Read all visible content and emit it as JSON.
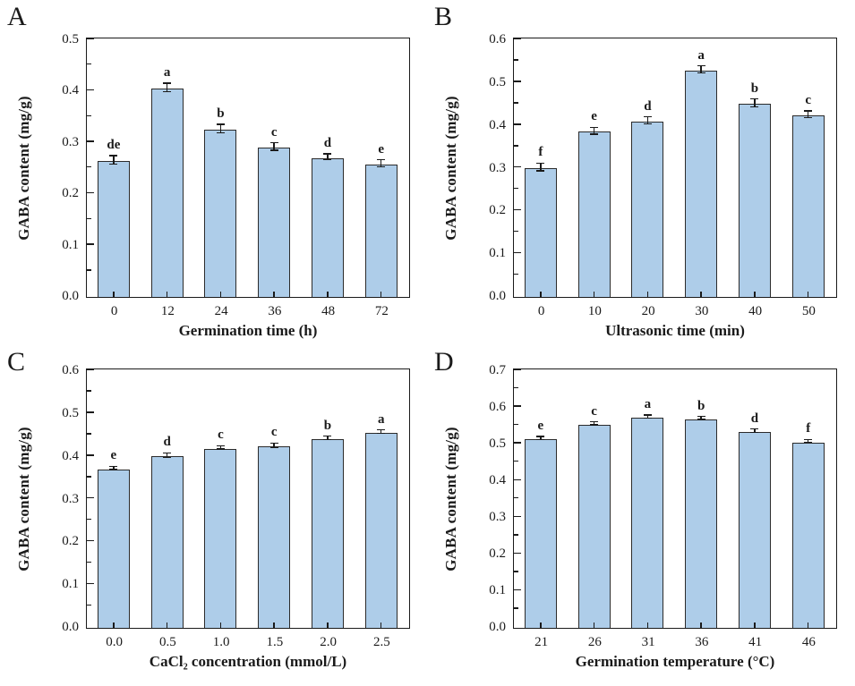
{
  "figure": {
    "background": "#ffffff",
    "bar_fill": "#aecde9",
    "bar_border": "#2b2b2b",
    "axis_color": "#1a1a1a",
    "text_color": "#1a1a1a"
  },
  "chart_data": [
    {
      "type": "bar",
      "panel": "A",
      "xlabel": "Germination time (h)",
      "ylabel": "GABA content (mg/g)",
      "ylim": [
        0,
        0.5
      ],
      "ytick_step": 0.1,
      "ytick_minor_step": 0.05,
      "grid": false,
      "categories": [
        "0",
        "12",
        "24",
        "36",
        "48",
        "72"
      ],
      "values": [
        0.264,
        0.405,
        0.325,
        0.29,
        0.27,
        0.257
      ],
      "errors": [
        0.008,
        0.008,
        0.008,
        0.007,
        0.006,
        0.007
      ],
      "sig_letters": [
        "de",
        "a",
        "b",
        "c",
        "d",
        "e"
      ]
    },
    {
      "type": "bar",
      "panel": "B",
      "xlabel": "Ultrasonic time (min)",
      "ylabel": "GABA content (mg/g)",
      "ylim": [
        0,
        0.6
      ],
      "ytick_step": 0.1,
      "ytick_minor_step": 0.05,
      "grid": false,
      "categories": [
        "0",
        "10",
        "20",
        "30",
        "40",
        "50"
      ],
      "values": [
        0.3,
        0.385,
        0.409,
        0.528,
        0.45,
        0.423
      ],
      "errors": [
        0.009,
        0.008,
        0.008,
        0.008,
        0.009,
        0.008
      ],
      "sig_letters": [
        "f",
        "e",
        "d",
        "a",
        "b",
        "c"
      ]
    },
    {
      "type": "bar",
      "panel": "C",
      "xlabel": "CaCl₂ concentration (mmol/L)",
      "ylabel": "GABA content (mg/g)",
      "ylim": [
        0,
        0.6
      ],
      "ytick_step": 0.1,
      "ytick_minor_step": 0.05,
      "grid": false,
      "categories": [
        "0.0",
        "0.5",
        "1.0",
        "1.5",
        "2.0",
        "2.5"
      ],
      "values": [
        0.37,
        0.4,
        0.418,
        0.423,
        0.44,
        0.455
      ],
      "errors": [
        0.004,
        0.005,
        0.004,
        0.005,
        0.004,
        0.004
      ],
      "sig_letters": [
        "e",
        "d",
        "c",
        "c",
        "b",
        "a"
      ]
    },
    {
      "type": "bar",
      "panel": "D",
      "xlabel": "Germination temperature (°C)",
      "ylabel": "GABA content (mg/g)",
      "ylim": [
        0,
        0.7
      ],
      "ytick_step": 0.1,
      "ytick_minor_step": 0.05,
      "grid": false,
      "categories": [
        "21",
        "26",
        "31",
        "36",
        "41",
        "46"
      ],
      "values": [
        0.513,
        0.553,
        0.572,
        0.568,
        0.533,
        0.505
      ],
      "errors": [
        0.004,
        0.004,
        0.004,
        0.004,
        0.005,
        0.004
      ],
      "sig_letters": [
        "e",
        "c",
        "a",
        "b",
        "d",
        "f"
      ]
    }
  ]
}
